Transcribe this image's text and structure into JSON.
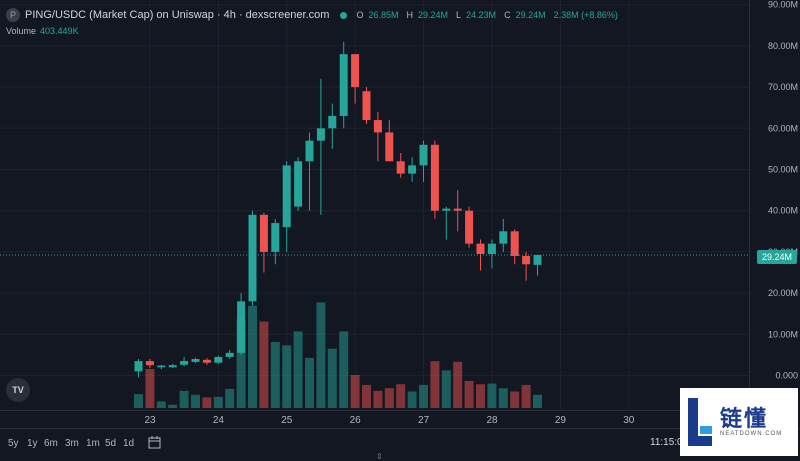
{
  "header": {
    "logo_glyph": "P",
    "symbol_title": "PING/USDC (Market Cap) on Uniswap · 4h · dexscreener.com",
    "open_label": "O",
    "open_value": "26.85M",
    "high_label": "H",
    "high_value": "29.24M",
    "low_label": "L",
    "low_value": "24.23M",
    "close_label": "C",
    "close_value": "29.24M",
    "change_value": "2.38M (+8.86%)"
  },
  "volume_legend": {
    "label": "Volume",
    "value": "403.449K"
  },
  "price_tag": "29.24M",
  "tv_logo": "TV",
  "timeframes": [
    "5y",
    "1y",
    "6m",
    "3m",
    "1m",
    "5d",
    "1d"
  ],
  "clock": "11:15:0",
  "watermark": {
    "brand": "链懂",
    "site": "NEATDOWN.COM"
  },
  "colors": {
    "up": "#26a69a",
    "down": "#ef5350",
    "background": "#131722",
    "grid": "#1e222d",
    "axis_text": "#b2b5be"
  },
  "chart_data": {
    "type": "candlestick",
    "y_axis": {
      "min": 0,
      "max": 90,
      "unit": "M",
      "ticks": [
        "0.000",
        "10.00M",
        "20.00M",
        "30.00M",
        "40.00M",
        "50.00M",
        "60.00M",
        "70.00M",
        "80.00M",
        "90.00M"
      ]
    },
    "x_axis": {
      "ticks": [
        "23",
        "24",
        "25",
        "26",
        "27",
        "28",
        "29",
        "30"
      ]
    },
    "candles": [
      {
        "o": 1,
        "h": 4,
        "l": -0.5,
        "c": 3.5
      },
      {
        "o": 3.5,
        "h": 4,
        "l": 1.8,
        "c": 2.5
      },
      {
        "o": 2,
        "h": 2.6,
        "l": 1.5,
        "c": 2.4
      },
      {
        "o": 2,
        "h": 2.8,
        "l": 1.8,
        "c": 2.5
      },
      {
        "o": 2.6,
        "h": 4.5,
        "l": 2.2,
        "c": 3.5
      },
      {
        "o": 3.3,
        "h": 4.3,
        "l": 3,
        "c": 4
      },
      {
        "o": 3.8,
        "h": 4.2,
        "l": 2.6,
        "c": 3.1
      },
      {
        "o": 3.1,
        "h": 4.8,
        "l": 2.8,
        "c": 4.5
      },
      {
        "o": 4.5,
        "h": 6.2,
        "l": 4,
        "c": 5.5
      },
      {
        "o": 5.5,
        "h": 20,
        "l": 5,
        "c": 18
      },
      {
        "o": 18,
        "h": 40,
        "l": 17,
        "c": 39
      },
      {
        "o": 39,
        "h": 39.5,
        "l": 25,
        "c": 30
      },
      {
        "o": 30,
        "h": 38,
        "l": 27,
        "c": 37
      },
      {
        "o": 36,
        "h": 52,
        "l": 30,
        "c": 51
      },
      {
        "o": 41,
        "h": 53,
        "l": 40,
        "c": 52
      },
      {
        "o": 52,
        "h": 59,
        "l": 40,
        "c": 57
      },
      {
        "o": 57,
        "h": 72,
        "l": 39,
        "c": 60
      },
      {
        "o": 60,
        "h": 66,
        "l": 55,
        "c": 63
      },
      {
        "o": 63,
        "h": 81,
        "l": 60,
        "c": 78
      },
      {
        "o": 78,
        "h": 78,
        "l": 66,
        "c": 70
      },
      {
        "o": 69,
        "h": 70,
        "l": 61,
        "c": 62
      },
      {
        "o": 62,
        "h": 64,
        "l": 52,
        "c": 59
      },
      {
        "o": 59,
        "h": 62,
        "l": 52,
        "c": 52
      },
      {
        "o": 52,
        "h": 54,
        "l": 48,
        "c": 49
      },
      {
        "o": 49,
        "h": 53,
        "l": 47,
        "c": 51
      },
      {
        "o": 51,
        "h": 57,
        "l": 47,
        "c": 56
      },
      {
        "o": 56,
        "h": 57,
        "l": 38,
        "c": 40
      },
      {
        "o": 40,
        "h": 41,
        "l": 33,
        "c": 40.5
      },
      {
        "o": 40.5,
        "h": 45,
        "l": 35,
        "c": 40
      },
      {
        "o": 40,
        "h": 41,
        "l": 31,
        "c": 32
      },
      {
        "o": 32,
        "h": 33,
        "l": 25.5,
        "c": 29.5
      },
      {
        "o": 29.5,
        "h": 33,
        "l": 26,
        "c": 32
      },
      {
        "o": 32,
        "h": 38,
        "l": 30,
        "c": 35
      },
      {
        "o": 35,
        "h": 35.5,
        "l": 27,
        "c": 29
      },
      {
        "o": 29,
        "h": 30,
        "l": 23,
        "c": 27
      },
      {
        "o": 26.85,
        "h": 29.24,
        "l": 24.23,
        "c": 29.24
      }
    ],
    "volume_unit": "relative",
    "volumes": [
      2.1,
      5.9,
      1,
      0.5,
      2.6,
      2,
      1.6,
      1.7,
      2.9,
      13.5,
      15.5,
      13.1,
      10,
      9.5,
      11.6,
      7.6,
      16,
      9,
      11.6,
      5,
      3.5,
      2.6,
      3,
      3.6,
      2.5,
      3.5,
      7.1,
      5.7,
      7,
      4.1,
      3.6,
      3.7,
      3,
      2.5,
      3.5,
      2
    ]
  }
}
